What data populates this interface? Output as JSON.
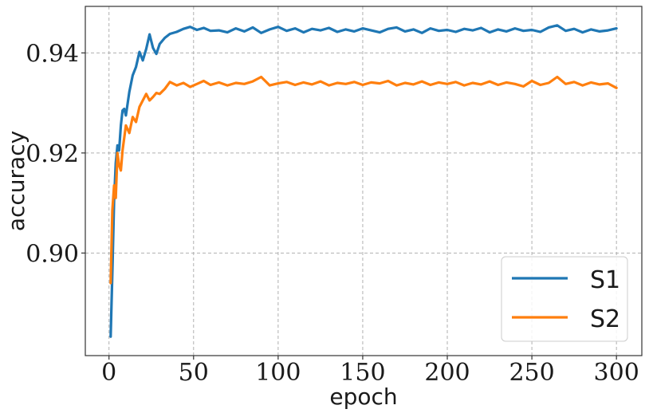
{
  "chart_data": {
    "type": "line",
    "title": "",
    "xlabel": "epoch",
    "ylabel": "accuracy",
    "xlim": [
      -14,
      315
    ],
    "ylim": [
      0.8795,
      0.9493
    ],
    "xticks": [
      0,
      50,
      100,
      150,
      200,
      250,
      300
    ],
    "xtick_labels": [
      "0",
      "50",
      "100",
      "150",
      "200",
      "250",
      "300"
    ],
    "yticks": [
      0.9,
      0.92,
      0.94
    ],
    "ytick_labels": [
      "0.90",
      "0.92",
      "0.94"
    ],
    "grid": true,
    "legend_position": "lower-right",
    "colors": {
      "S1": "#1f77b4",
      "S2": "#ff7f0e"
    },
    "series": [
      {
        "name": "S1",
        "color": "#1f77b4",
        "x": [
          1,
          2,
          3,
          4,
          5,
          6,
          7,
          8,
          9,
          10,
          12,
          14,
          16,
          18,
          20,
          22,
          24,
          26,
          28,
          30,
          33,
          36,
          40,
          44,
          48,
          52,
          56,
          60,
          65,
          70,
          75,
          80,
          85,
          90,
          95,
          100,
          105,
          110,
          115,
          120,
          125,
          130,
          135,
          140,
          145,
          150,
          155,
          160,
          165,
          170,
          175,
          180,
          185,
          190,
          195,
          200,
          205,
          210,
          215,
          220,
          225,
          230,
          235,
          240,
          245,
          250,
          255,
          260,
          265,
          270,
          275,
          280,
          285,
          290,
          295,
          300
        ],
        "y": [
          0.8833,
          0.896,
          0.9105,
          0.918,
          0.9215,
          0.9205,
          0.9255,
          0.9285,
          0.9288,
          0.9275,
          0.9322,
          0.9355,
          0.9372,
          0.9402,
          0.9385,
          0.9408,
          0.9437,
          0.941,
          0.9398,
          0.9418,
          0.943,
          0.9438,
          0.9442,
          0.9448,
          0.9452,
          0.9446,
          0.945,
          0.9444,
          0.9445,
          0.9441,
          0.9449,
          0.9443,
          0.9451,
          0.944,
          0.9447,
          0.9452,
          0.9444,
          0.9449,
          0.9441,
          0.9448,
          0.9445,
          0.945,
          0.9442,
          0.9447,
          0.9443,
          0.9449,
          0.9445,
          0.9441,
          0.9448,
          0.9451,
          0.9443,
          0.9447,
          0.944,
          0.9449,
          0.9444,
          0.9446,
          0.9442,
          0.9448,
          0.9445,
          0.945,
          0.9441,
          0.9447,
          0.9443,
          0.9449,
          0.9444,
          0.9446,
          0.9442,
          0.9451,
          0.9455,
          0.9444,
          0.9448,
          0.9441,
          0.9447,
          0.9443,
          0.9445,
          0.9449
        ]
      },
      {
        "name": "S2",
        "color": "#ff7f0e",
        "x": [
          1,
          2,
          3,
          4,
          5,
          6,
          7,
          8,
          9,
          10,
          12,
          14,
          16,
          18,
          20,
          22,
          24,
          26,
          28,
          30,
          33,
          36,
          40,
          44,
          48,
          52,
          56,
          60,
          65,
          70,
          75,
          80,
          85,
          90,
          95,
          100,
          105,
          110,
          115,
          120,
          125,
          130,
          135,
          140,
          145,
          150,
          155,
          160,
          165,
          170,
          175,
          180,
          185,
          190,
          195,
          200,
          205,
          210,
          215,
          220,
          225,
          230,
          235,
          240,
          245,
          250,
          255,
          260,
          265,
          270,
          275,
          280,
          285,
          290,
          295,
          300
        ],
        "y": [
          0.894,
          0.9085,
          0.9135,
          0.911,
          0.92,
          0.9175,
          0.9165,
          0.9205,
          0.923,
          0.9255,
          0.924,
          0.9272,
          0.9262,
          0.9292,
          0.9305,
          0.9318,
          0.9305,
          0.9312,
          0.932,
          0.9318,
          0.9328,
          0.9342,
          0.9335,
          0.934,
          0.9332,
          0.9338,
          0.9344,
          0.9336,
          0.9341,
          0.9335,
          0.934,
          0.9338,
          0.9343,
          0.9352,
          0.9335,
          0.9339,
          0.9342,
          0.9336,
          0.9341,
          0.9337,
          0.9343,
          0.9335,
          0.934,
          0.9338,
          0.9342,
          0.9336,
          0.9341,
          0.9339,
          0.9344,
          0.9335,
          0.934,
          0.9337,
          0.9343,
          0.9336,
          0.9341,
          0.9338,
          0.9342,
          0.9335,
          0.934,
          0.9337,
          0.9343,
          0.9336,
          0.9341,
          0.9338,
          0.9333,
          0.9344,
          0.9336,
          0.934,
          0.9352,
          0.9338,
          0.9342,
          0.9335,
          0.9341,
          0.9337,
          0.9339,
          0.933
        ]
      }
    ]
  }
}
